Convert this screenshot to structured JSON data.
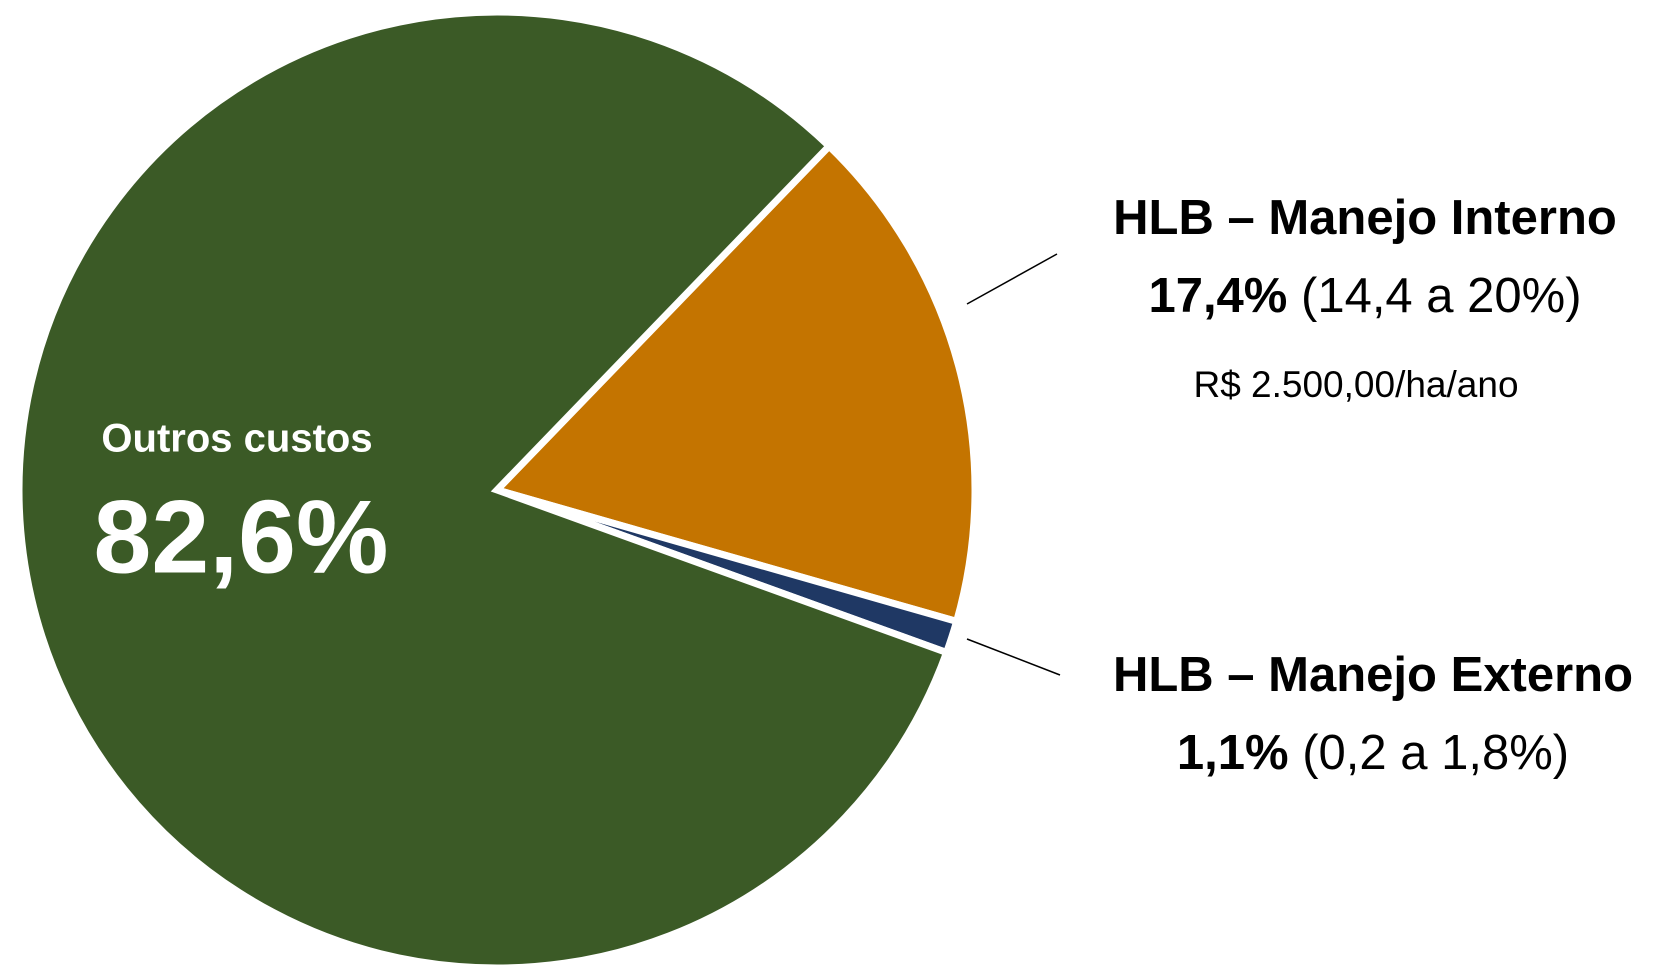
{
  "chart_data": {
    "type": "pie",
    "categories": [
      "HLB – Manejo Interno",
      "HLB – Manejo Externo",
      "Outros custos"
    ],
    "values": [
      17.4,
      1.1,
      82.6
    ],
    "value_labels": [
      "17,4%",
      "1,1%",
      "82,6%"
    ],
    "colors": [
      "#c47400",
      "#1f3864",
      "#3b5a26"
    ],
    "ranges": [
      "(14,4 a 20%)",
      "(0,2 a 1,8%)"
    ],
    "note": "R$ 2.500,00/ha/ano"
  }
}
